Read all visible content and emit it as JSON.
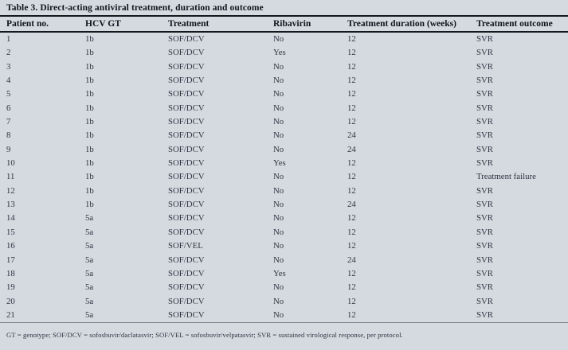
{
  "title": "Table 3. Direct-acting antiviral treatment, duration and outcome",
  "table": {
    "columns": [
      "Patient no.",
      "HCV GT",
      "Treatment",
      "Ribavirin",
      "Treatment duration (weeks)",
      "Treatment outcome"
    ],
    "rows": [
      [
        "1",
        "1b",
        "SOF/DCV",
        "No",
        "12",
        "SVR"
      ],
      [
        "2",
        "1b",
        "SOF/DCV",
        "Yes",
        "12",
        "SVR"
      ],
      [
        "3",
        "1b",
        "SOF/DCV",
        "No",
        "12",
        "SVR"
      ],
      [
        "4",
        "1b",
        "SOF/DCV",
        "No",
        "12",
        "SVR"
      ],
      [
        "5",
        "1b",
        "SOF/DCV",
        "No",
        "12",
        "SVR"
      ],
      [
        "6",
        "1b",
        "SOF/DCV",
        "No",
        "12",
        "SVR"
      ],
      [
        "7",
        "1b",
        "SOF/DCV",
        "No",
        "12",
        "SVR"
      ],
      [
        "8",
        "1b",
        "SOF/DCV",
        "No",
        "24",
        "SVR"
      ],
      [
        "9",
        "1b",
        "SOF/DCV",
        "No",
        "24",
        "SVR"
      ],
      [
        "10",
        "1b",
        "SOF/DCV",
        "Yes",
        "12",
        "SVR"
      ],
      [
        "11",
        "1b",
        "SOF/DCV",
        "No",
        "12",
        "Treatment failure"
      ],
      [
        "12",
        "1b",
        "SOF/DCV",
        "No",
        "12",
        "SVR"
      ],
      [
        "13",
        "1b",
        "SOF/DCV",
        "No",
        "24",
        "SVR"
      ],
      [
        "14",
        "5a",
        "SOF/DCV",
        "No",
        "12",
        "SVR"
      ],
      [
        "15",
        "5a",
        "SOF/DCV",
        "No",
        "12",
        "SVR"
      ],
      [
        "16",
        "5a",
        "SOF/VEL",
        "No",
        "12",
        "SVR"
      ],
      [
        "17",
        "5a",
        "SOF/DCV",
        "No",
        "24",
        "SVR"
      ],
      [
        "18",
        "5a",
        "SOF/DCV",
        "Yes",
        "12",
        "SVR"
      ],
      [
        "19",
        "5a",
        "SOF/DCV",
        "No",
        "12",
        "SVR"
      ],
      [
        "20",
        "5a",
        "SOF/DCV",
        "No",
        "12",
        "SVR"
      ],
      [
        "21",
        "5a",
        "SOF/DCV",
        "No",
        "12",
        "SVR"
      ]
    ]
  },
  "footnote": "GT = genotype; SOF/DCV = sofosbuvir/daclatasvir; SOF/VEL = sofosbuvir/velpatasvir; SVR = sustained virological response, per protocol.",
  "colors": {
    "background": "#d5dae1",
    "rule": "#15171b",
    "title_text": "#10141b",
    "body_text": "#2e3440"
  }
}
